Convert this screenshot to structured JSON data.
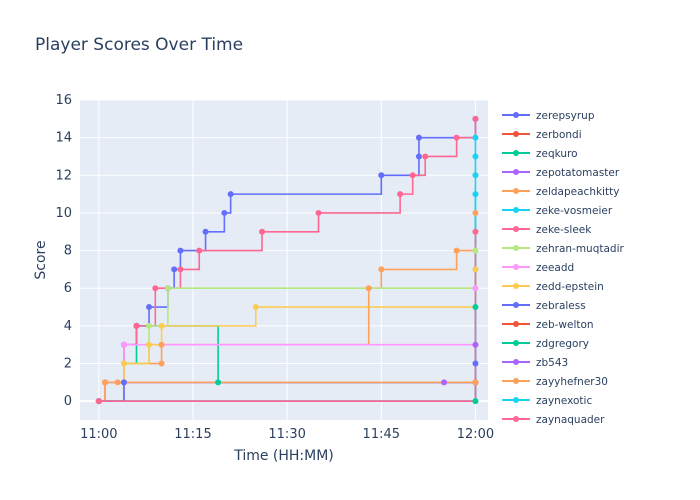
{
  "chart_data": {
    "type": "line",
    "title": "Player Scores Over Time",
    "xlabel": "Time (HH:MM)",
    "ylabel": "Score",
    "xlim": [
      "10:57",
      "12:02"
    ],
    "ylim": [
      -1,
      16
    ],
    "x_ticks": [
      "11:00",
      "11:15",
      "11:30",
      "11:45",
      "12:00"
    ],
    "y_ticks": [
      0,
      2,
      4,
      6,
      8,
      10,
      12,
      14,
      16
    ],
    "line_shape": "step (hv)",
    "legend_position": "right",
    "grid": true,
    "plot_bg": "#E5ECF6",
    "series": [
      {
        "name": "zerepsyrup",
        "color": "#636EFA",
        "x": [
          "11:00",
          "11:01",
          "11:04",
          "11:06",
          "11:08",
          "11:11",
          "11:12",
          "11:13",
          "11:17",
          "11:20",
          "11:21",
          "11:45",
          "11:51",
          "11:51",
          "12:00"
        ],
        "y": [
          0,
          1,
          3,
          4,
          5,
          6,
          7,
          8,
          9,
          10,
          11,
          12,
          13,
          14,
          15
        ]
      },
      {
        "name": "zerbondi",
        "color": "#EF553B",
        "x": [
          "11:04",
          "12:00"
        ],
        "y": [
          1,
          1
        ]
      },
      {
        "name": "zeqkuro",
        "color": "#00CC96",
        "x": [
          "11:00",
          "11:04",
          "11:06",
          "11:19",
          "12:00"
        ],
        "y": [
          0,
          2,
          4,
          1,
          0
        ]
      },
      {
        "name": "zepotatomaster",
        "color": "#AB63FA",
        "x": [
          "11:01",
          "11:55",
          "12:00"
        ],
        "y": [
          1,
          1,
          1
        ]
      },
      {
        "name": "zeldapeachkitty",
        "color": "#FFA15A",
        "x": [
          "11:00",
          "11:01",
          "11:03",
          "11:04",
          "11:10",
          "11:10",
          "11:43",
          "11:45",
          "11:57",
          "12:00"
        ],
        "y": [
          0,
          1,
          1,
          2,
          2,
          3,
          6,
          7,
          8,
          10
        ]
      },
      {
        "name": "zeke-vosmeier",
        "color": "#19D3F3",
        "x": [
          "12:00",
          "12:00",
          "12:00",
          "12:00"
        ],
        "y": [
          7,
          12,
          13,
          14
        ]
      },
      {
        "name": "zeke-sleek",
        "color": "#FF6692",
        "x": [
          "11:00",
          "11:01",
          "11:04",
          "11:06",
          "11:09",
          "11:13",
          "11:16",
          "11:26",
          "11:35",
          "11:48",
          "11:50",
          "11:52",
          "11:57",
          "12:00"
        ],
        "y": [
          0,
          1,
          3,
          4,
          6,
          7,
          8,
          9,
          10,
          11,
          12,
          13,
          14,
          15
        ]
      },
      {
        "name": "zehran-muqtadir",
        "color": "#B6E880",
        "x": [
          "11:00",
          "11:04",
          "11:08",
          "11:11",
          "12:00"
        ],
        "y": [
          0,
          2,
          4,
          6,
          8
        ]
      },
      {
        "name": "zeeadd",
        "color": "#FF97FF",
        "x": [
          "11:00",
          "11:04",
          "12:00"
        ],
        "y": [
          0,
          3,
          6
        ]
      },
      {
        "name": "zedd-epstein",
        "color": "#FECB52",
        "x": [
          "11:00",
          "11:01",
          "11:04",
          "11:08",
          "11:10",
          "11:25",
          "12:00"
        ],
        "y": [
          0,
          1,
          2,
          3,
          4,
          5,
          7
        ]
      },
      {
        "name": "zebraless",
        "color": "#636EFA",
        "x": [
          "11:00",
          "11:04",
          "12:00"
        ],
        "y": [
          0,
          1,
          2
        ]
      },
      {
        "name": "zeb-welton",
        "color": "#EF553B",
        "x": [
          "11:00",
          "12:00"
        ],
        "y": [
          0,
          1
        ]
      },
      {
        "name": "zdgregory",
        "color": "#00CC96",
        "x": [
          "11:00",
          "12:00"
        ],
        "y": [
          0,
          5
        ]
      },
      {
        "name": "zb543",
        "color": "#AB63FA",
        "x": [
          "11:00",
          "12:00"
        ],
        "y": [
          0,
          3
        ]
      },
      {
        "name": "zayyhefner30",
        "color": "#FFA15A",
        "x": [
          "11:00",
          "11:01",
          "12:00"
        ],
        "y": [
          0,
          1,
          1
        ]
      },
      {
        "name": "zaynexotic",
        "color": "#19D3F3",
        "x": [
          "11:00",
          "12:00"
        ],
        "y": [
          0,
          11
        ]
      },
      {
        "name": "zaynaquader",
        "color": "#FF6692",
        "x": [
          "11:00",
          "12:00"
        ],
        "y": [
          0,
          9
        ]
      }
    ]
  }
}
